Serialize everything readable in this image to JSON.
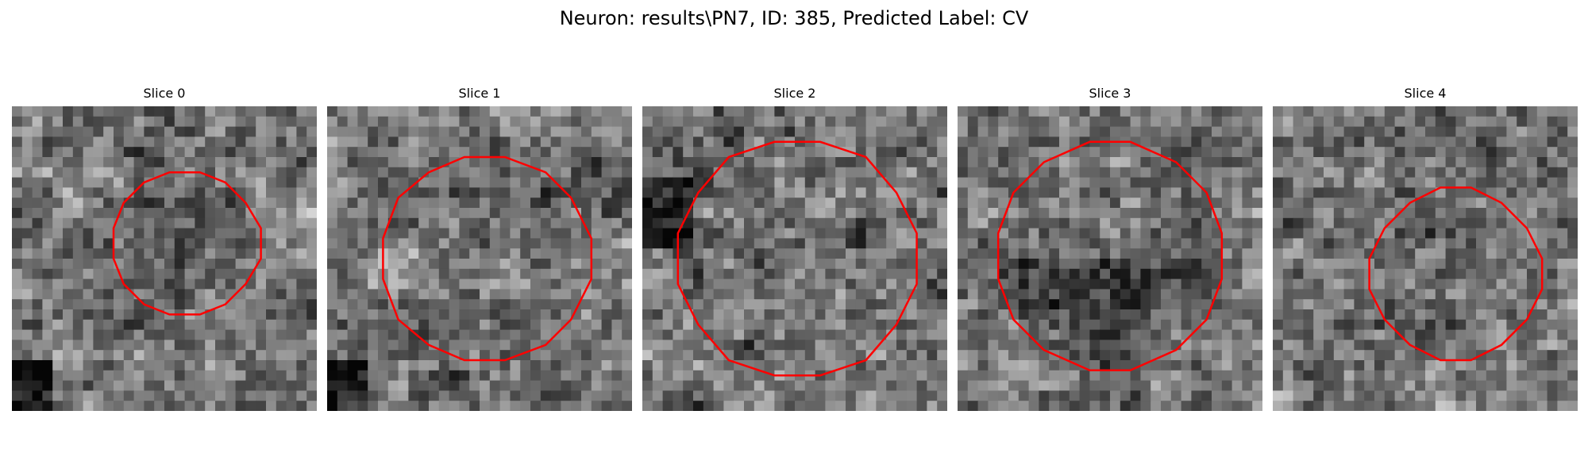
{
  "figure": {
    "title": "Neuron: results\\PN7, ID: 385, Predicted Label: CV"
  },
  "contour_color": "#ff0000",
  "colormap": "gray",
  "slices": [
    {
      "title": "Slice 0",
      "contour_center": [
        0.57,
        0.45
      ],
      "contour_radius": 0.24
    },
    {
      "title": "Slice 1",
      "contour_center": [
        0.52,
        0.5
      ],
      "contour_radius": 0.34
    },
    {
      "title": "Slice 2",
      "contour_center": [
        0.51,
        0.5
      ],
      "contour_radius": 0.39
    },
    {
      "title": "Slice 3",
      "contour_center": [
        0.5,
        0.49
      ],
      "contour_radius": 0.37
    },
    {
      "title": "Slice 4",
      "contour_center": [
        0.6,
        0.55
      ],
      "contour_radius": 0.28
    }
  ]
}
